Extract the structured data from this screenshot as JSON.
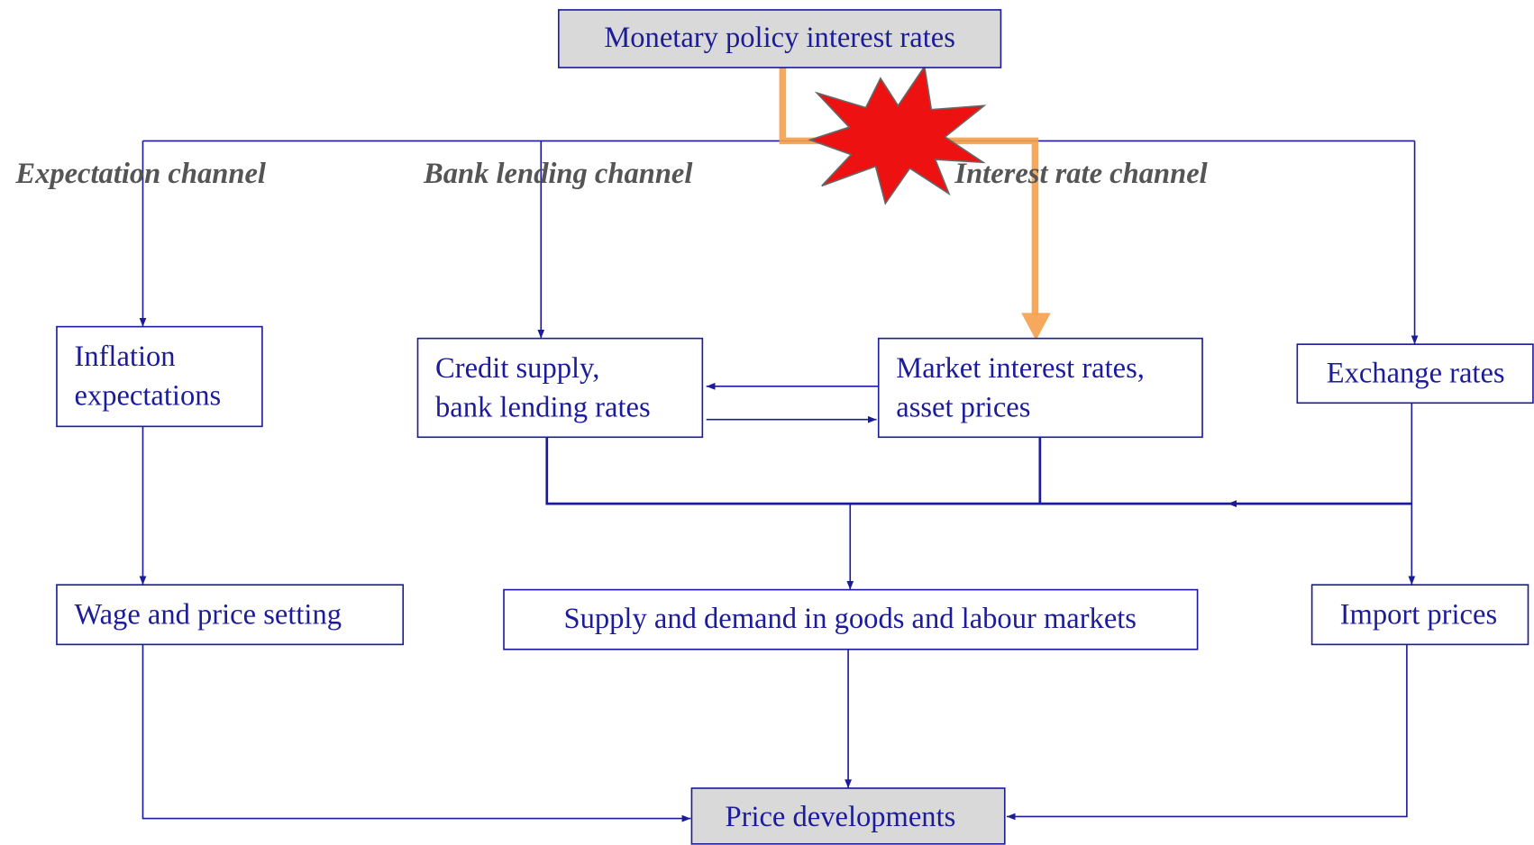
{
  "channels": [
    "Expectation channel",
    "Bank lending channel",
    "Interest rate channel"
  ],
  "nodes": [
    {
      "lines": [
        "Monetary policy interest rates"
      ]
    },
    {
      "lines": [
        "Inflation",
        "expectations"
      ]
    },
    {
      "lines": [
        "Credit supply,",
        "bank lending rates"
      ]
    },
    {
      "lines": [
        "Market interest rates,",
        "asset prices"
      ]
    },
    {
      "lines": [
        "Exchange rates"
      ]
    },
    {
      "lines": [
        "Wage and price setting"
      ]
    },
    {
      "lines": [
        "Supply and demand in goods and labour markets"
      ]
    },
    {
      "lines": [
        "Import prices"
      ]
    },
    {
      "lines": [
        "Price developments"
      ]
    }
  ]
}
